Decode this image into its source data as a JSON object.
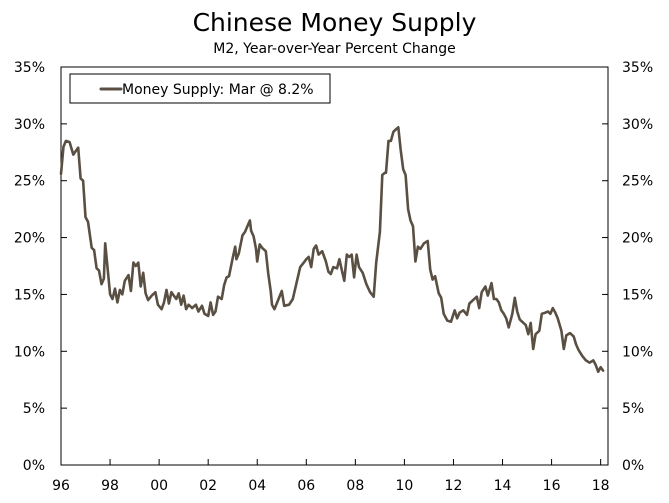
{
  "chart_data": {
    "type": "line",
    "title": "Chinese Money Supply",
    "subtitle": "M2, Year-over-Year Percent Change",
    "xlabel": "",
    "ylabel": "",
    "xlim": [
      1996.0,
      2018.3
    ],
    "ylim": [
      0,
      35
    ],
    "grid": false,
    "legend": {
      "placement": "top-left",
      "entries": [
        "Money Supply: Mar @ 8.2%"
      ]
    },
    "x_ticks": [
      {
        "value": 1996,
        "label": "96"
      },
      {
        "value": 1998,
        "label": "98"
      },
      {
        "value": 2000,
        "label": "00"
      },
      {
        "value": 2002,
        "label": "02"
      },
      {
        "value": 2004,
        "label": "04"
      },
      {
        "value": 2006,
        "label": "06"
      },
      {
        "value": 2008,
        "label": "08"
      },
      {
        "value": 2010,
        "label": "10"
      },
      {
        "value": 2012,
        "label": "12"
      },
      {
        "value": 2014,
        "label": "14"
      },
      {
        "value": 2016,
        "label": "16"
      },
      {
        "value": 2018,
        "label": "18"
      }
    ],
    "y_ticks_left": [
      {
        "value": 0,
        "label": "0%"
      },
      {
        "value": 5,
        "label": "5%"
      },
      {
        "value": 10,
        "label": "10%"
      },
      {
        "value": 15,
        "label": "15%"
      },
      {
        "value": 20,
        "label": "20%"
      },
      {
        "value": 25,
        "label": "25%"
      },
      {
        "value": 30,
        "label": "30%"
      },
      {
        "value": 35,
        "label": "35%"
      }
    ],
    "y_ticks_right": [
      {
        "value": 0,
        "label": "0%"
      },
      {
        "value": 5,
        "label": "5%"
      },
      {
        "value": 10,
        "label": "10%"
      },
      {
        "value": 15,
        "label": "15%"
      },
      {
        "value": 20,
        "label": "20%"
      },
      {
        "value": 25,
        "label": "25%"
      },
      {
        "value": 30,
        "label": "30%"
      },
      {
        "value": 35,
        "label": "35%"
      }
    ],
    "series": [
      {
        "name": "Money Supply: Mar @ 8.2%",
        "color": "#5a4f43",
        "points": [
          [
            1996.0,
            25.6
          ],
          [
            1996.1,
            28.0
          ],
          [
            1996.2,
            28.5
          ],
          [
            1996.35,
            28.4
          ],
          [
            1996.5,
            27.3
          ],
          [
            1996.6,
            27.6
          ],
          [
            1996.7,
            27.9
          ],
          [
            1996.8,
            25.2
          ],
          [
            1996.9,
            25.0
          ],
          [
            1997.0,
            21.8
          ],
          [
            1997.1,
            21.4
          ],
          [
            1997.25,
            19.1
          ],
          [
            1997.35,
            18.9
          ],
          [
            1997.45,
            17.3
          ],
          [
            1997.55,
            17.1
          ],
          [
            1997.65,
            15.9
          ],
          [
            1997.75,
            16.4
          ],
          [
            1997.8,
            19.5
          ],
          [
            1997.9,
            17.3
          ],
          [
            1998.0,
            15.0
          ],
          [
            1998.1,
            14.6
          ],
          [
            1998.2,
            15.5
          ],
          [
            1998.3,
            14.3
          ],
          [
            1998.4,
            15.4
          ],
          [
            1998.5,
            15.0
          ],
          [
            1998.6,
            16.2
          ],
          [
            1998.75,
            16.7
          ],
          [
            1998.85,
            15.3
          ],
          [
            1998.95,
            17.8
          ],
          [
            1999.05,
            17.5
          ],
          [
            1999.15,
            17.8
          ],
          [
            1999.25,
            15.7
          ],
          [
            1999.35,
            16.9
          ],
          [
            1999.45,
            15.1
          ],
          [
            1999.55,
            14.5
          ],
          [
            1999.7,
            14.9
          ],
          [
            1999.85,
            15.2
          ],
          [
            1999.95,
            14.1
          ],
          [
            2000.1,
            13.7
          ],
          [
            2000.2,
            14.3
          ],
          [
            2000.3,
            15.4
          ],
          [
            2000.4,
            14.2
          ],
          [
            2000.5,
            15.2
          ],
          [
            2000.6,
            14.9
          ],
          [
            2000.7,
            14.6
          ],
          [
            2000.8,
            15.1
          ],
          [
            2000.9,
            14.1
          ],
          [
            2001.0,
            14.9
          ],
          [
            2001.1,
            13.7
          ],
          [
            2001.2,
            14.1
          ],
          [
            2001.35,
            13.8
          ],
          [
            2001.5,
            14.1
          ],
          [
            2001.6,
            13.5
          ],
          [
            2001.75,
            14.0
          ],
          [
            2001.85,
            13.3
          ],
          [
            2002.0,
            13.1
          ],
          [
            2002.1,
            14.3
          ],
          [
            2002.2,
            13.2
          ],
          [
            2002.3,
            13.5
          ],
          [
            2002.4,
            14.8
          ],
          [
            2002.55,
            14.6
          ],
          [
            2002.65,
            15.8
          ],
          [
            2002.75,
            16.5
          ],
          [
            2002.85,
            16.6
          ],
          [
            2003.0,
            18.2
          ],
          [
            2003.1,
            19.2
          ],
          [
            2003.15,
            18.1
          ],
          [
            2003.25,
            18.6
          ],
          [
            2003.4,
            20.2
          ],
          [
            2003.5,
            20.5
          ],
          [
            2003.6,
            21.0
          ],
          [
            2003.7,
            21.5
          ],
          [
            2003.75,
            20.6
          ],
          [
            2003.85,
            20.1
          ],
          [
            2003.95,
            19.0
          ],
          [
            2004.0,
            17.9
          ],
          [
            2004.1,
            19.4
          ],
          [
            2004.2,
            19.1
          ],
          [
            2004.35,
            18.8
          ],
          [
            2004.45,
            16.8
          ],
          [
            2004.55,
            15.3
          ],
          [
            2004.6,
            14.1
          ],
          [
            2004.7,
            13.7
          ],
          [
            2004.85,
            14.5
          ],
          [
            2005.0,
            15.3
          ],
          [
            2005.1,
            14.0
          ],
          [
            2005.3,
            14.1
          ],
          [
            2005.45,
            14.6
          ],
          [
            2005.6,
            16.0
          ],
          [
            2005.75,
            17.4
          ],
          [
            2005.9,
            17.8
          ],
          [
            2006.0,
            18.1
          ],
          [
            2006.1,
            18.3
          ],
          [
            2006.2,
            17.4
          ],
          [
            2006.3,
            19.0
          ],
          [
            2006.4,
            19.3
          ],
          [
            2006.5,
            18.5
          ],
          [
            2006.65,
            18.8
          ],
          [
            2006.8,
            17.9
          ],
          [
            2006.9,
            17.0
          ],
          [
            2007.0,
            16.8
          ],
          [
            2007.1,
            17.4
          ],
          [
            2007.25,
            17.3
          ],
          [
            2007.35,
            18.1
          ],
          [
            2007.45,
            17.1
          ],
          [
            2007.55,
            16.2
          ],
          [
            2007.65,
            18.5
          ],
          [
            2007.75,
            18.3
          ],
          [
            2007.85,
            18.5
          ],
          [
            2007.95,
            16.5
          ],
          [
            2008.05,
            18.5
          ],
          [
            2008.15,
            17.4
          ],
          [
            2008.3,
            16.9
          ],
          [
            2008.45,
            15.9
          ],
          [
            2008.6,
            15.2
          ],
          [
            2008.75,
            14.8
          ],
          [
            2008.85,
            17.8
          ],
          [
            2009.0,
            20.5
          ],
          [
            2009.1,
            25.5
          ],
          [
            2009.2,
            25.7
          ],
          [
            2009.25,
            25.7
          ],
          [
            2009.35,
            28.5
          ],
          [
            2009.45,
            28.5
          ],
          [
            2009.55,
            29.3
          ],
          [
            2009.65,
            29.5
          ],
          [
            2009.75,
            29.7
          ],
          [
            2009.85,
            27.7
          ],
          [
            2009.95,
            26.0
          ],
          [
            2010.05,
            25.5
          ],
          [
            2010.15,
            22.5
          ],
          [
            2010.25,
            21.5
          ],
          [
            2010.35,
            21.0
          ],
          [
            2010.45,
            17.9
          ],
          [
            2010.55,
            19.2
          ],
          [
            2010.65,
            19.0
          ],
          [
            2010.8,
            19.5
          ],
          [
            2010.95,
            19.7
          ],
          [
            2011.05,
            17.2
          ],
          [
            2011.15,
            16.3
          ],
          [
            2011.25,
            16.6
          ],
          [
            2011.4,
            15.1
          ],
          [
            2011.5,
            14.7
          ],
          [
            2011.6,
            13.3
          ],
          [
            2011.75,
            12.7
          ],
          [
            2011.9,
            12.6
          ],
          [
            2012.05,
            13.6
          ],
          [
            2012.15,
            12.9
          ],
          [
            2012.25,
            13.4
          ],
          [
            2012.4,
            13.6
          ],
          [
            2012.55,
            13.2
          ],
          [
            2012.65,
            14.2
          ],
          [
            2012.8,
            14.5
          ],
          [
            2012.95,
            14.8
          ],
          [
            2013.05,
            13.8
          ],
          [
            2013.15,
            15.2
          ],
          [
            2013.3,
            15.7
          ],
          [
            2013.4,
            14.9
          ],
          [
            2013.55,
            16.0
          ],
          [
            2013.65,
            14.6
          ],
          [
            2013.75,
            14.6
          ],
          [
            2013.85,
            14.3
          ],
          [
            2013.95,
            13.6
          ],
          [
            2014.05,
            13.3
          ],
          [
            2014.15,
            12.9
          ],
          [
            2014.25,
            12.1
          ],
          [
            2014.4,
            13.3
          ],
          [
            2014.5,
            14.7
          ],
          [
            2014.6,
            13.5
          ],
          [
            2014.7,
            12.8
          ],
          [
            2014.8,
            12.6
          ],
          [
            2014.95,
            12.3
          ],
          [
            2015.05,
            11.5
          ],
          [
            2015.15,
            12.5
          ],
          [
            2015.25,
            10.2
          ],
          [
            2015.35,
            11.5
          ],
          [
            2015.5,
            11.8
          ],
          [
            2015.6,
            13.3
          ],
          [
            2015.75,
            13.4
          ],
          [
            2015.85,
            13.5
          ],
          [
            2015.95,
            13.3
          ],
          [
            2016.05,
            13.8
          ],
          [
            2016.15,
            13.4
          ],
          [
            2016.25,
            12.9
          ],
          [
            2016.4,
            11.8
          ],
          [
            2016.5,
            10.2
          ],
          [
            2016.6,
            11.4
          ],
          [
            2016.75,
            11.6
          ],
          [
            2016.9,
            11.3
          ],
          [
            2017.0,
            10.6
          ],
          [
            2017.1,
            10.1
          ],
          [
            2017.25,
            9.6
          ],
          [
            2017.4,
            9.2
          ],
          [
            2017.55,
            9.0
          ],
          [
            2017.7,
            9.2
          ],
          [
            2017.8,
            8.8
          ],
          [
            2017.9,
            8.2
          ],
          [
            2018.0,
            8.6
          ],
          [
            2018.1,
            8.3
          ]
        ]
      }
    ]
  }
}
